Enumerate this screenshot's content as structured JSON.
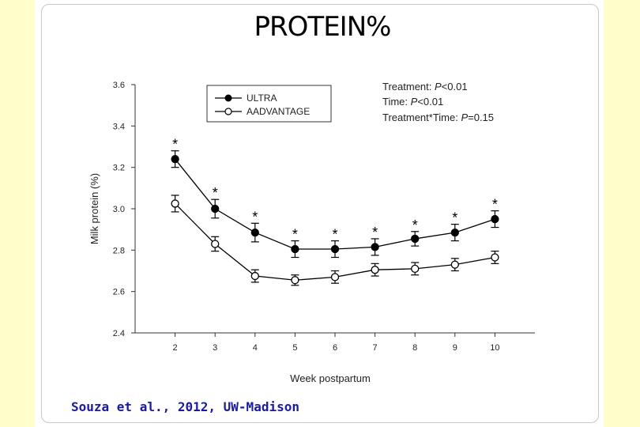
{
  "title": "PROTEIN%",
  "credit": "Souza et al., 2012, UW-Madison",
  "stats": {
    "line1": {
      "label": "Treatment: ",
      "p": "P",
      "rest": "<0.01"
    },
    "line2": {
      "label": "Time: ",
      "p": "P",
      "rest": "<0.01"
    },
    "line3": {
      "label": "Treatment*Time: ",
      "p": "P",
      "rest": "=0.15"
    }
  },
  "colors": {
    "background": "#ffffcc",
    "credit": "#1a1aa0",
    "series": "#000000"
  },
  "chart_data": {
    "type": "line",
    "title": "PROTEIN%",
    "xlabel": "Week postpartum",
    "ylabel": "Milk protein (%)",
    "x": [
      2,
      3,
      4,
      5,
      6,
      7,
      8,
      9,
      10
    ],
    "xticks": [
      "2",
      "3",
      "4",
      "5",
      "6",
      "7",
      "8",
      "9",
      "10"
    ],
    "xlim": [
      1,
      11
    ],
    "ylim": [
      2.4,
      3.6
    ],
    "yticks": [
      "2.4",
      "2.6",
      "2.8",
      "3.0",
      "3.2",
      "3.4",
      "3.6"
    ],
    "significance_marker": "*",
    "significant_weeks": [
      2,
      3,
      4,
      5,
      6,
      7,
      8,
      9,
      10
    ],
    "legend_position": "top-left",
    "series": [
      {
        "name": "ULTRA",
        "marker": "filled-circle",
        "values": [
          3.24,
          3.0,
          2.885,
          2.805,
          2.805,
          2.815,
          2.855,
          2.885,
          2.95
        ],
        "errors": [
          0.04,
          0.045,
          0.045,
          0.04,
          0.04,
          0.04,
          0.035,
          0.04,
          0.04
        ]
      },
      {
        "name": "AADVANTAGE",
        "marker": "open-circle",
        "values": [
          3.025,
          2.83,
          2.675,
          2.655,
          2.67,
          2.705,
          2.71,
          2.73,
          2.765
        ],
        "errors": [
          0.04,
          0.035,
          0.03,
          0.025,
          0.03,
          0.03,
          0.03,
          0.03,
          0.03
        ]
      }
    ]
  }
}
